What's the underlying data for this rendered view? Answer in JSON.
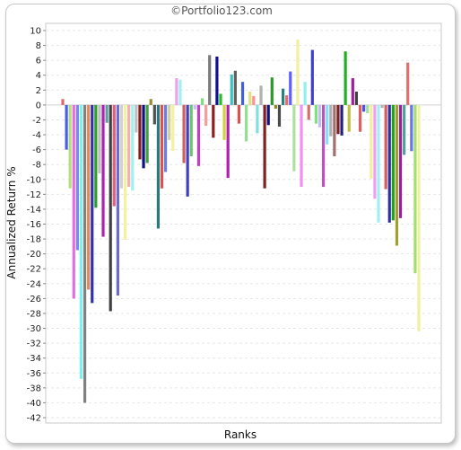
{
  "chart_data": {
    "type": "bar",
    "title": "©Portfolio123.com",
    "xlabel": "Ranks",
    "ylabel": "Annualized Return %",
    "ylim": [
      -42,
      10
    ],
    "ytick_step": 2,
    "grid": true,
    "legend": "none",
    "series": [
      {
        "values": [
          0.8,
          -6,
          -11.2,
          -26,
          -19.5,
          -36.8,
          -40,
          -24.8,
          -26.6,
          -13.8,
          -9.2,
          -17.7,
          -2.4,
          -27.7,
          -13.6,
          -25.6,
          -11.2,
          -18.1,
          -11,
          -11.5,
          -3.7,
          -7.3,
          -8.5,
          -7.8,
          0.8,
          -2.6,
          -16.6,
          -11.2,
          -9,
          -4.7,
          -6.2,
          3.6,
          3.4,
          -7.8,
          -12.3,
          -6.9,
          -0.6,
          -8.2,
          0.9,
          -2.8,
          6.7,
          -4.4,
          6.5,
          1.5,
          -4.7,
          -9.8,
          4.1,
          4.6,
          -2.5,
          3.1,
          -4.9,
          1.8,
          1.2,
          -3.8,
          2.6,
          -11.2,
          -2.7,
          3.7,
          -0.5,
          -2.9,
          2.2,
          1.3,
          4.5,
          -8.9,
          8.8,
          -11,
          3.1,
          -2,
          7.4,
          -2.5,
          -3,
          -11,
          -5.3,
          -4.2,
          -6.9,
          -3.9,
          -4.1,
          7.2,
          -3.6,
          3.6,
          1.8,
          -3.6,
          -0.9,
          -1.1,
          -9.9,
          -12.6,
          -15.8,
          -0.4,
          -11.3,
          -15.8,
          -15.5,
          -18.9,
          -15.2,
          -6.7,
          5.7,
          -6.2,
          -22.6,
          -30.4
        ]
      }
    ]
  },
  "colors": [
    "#e06a6a",
    "#4c5ee0",
    "#b4e07a",
    "#e070e0",
    "#8080ff",
    "#7af2f2",
    "#808080",
    "#e08a5a",
    "#3030b0",
    "#2aa02a",
    "#bfbfbf",
    "#b020b0",
    "#5ea0a0",
    "#404040",
    "#e06080",
    "#6a6ad0",
    "#d0d0d0",
    "#f2f2a0",
    "#f0b0b0",
    "#a0f2f2",
    "#c0c0c0",
    "#802020",
    "#101080",
    "#40a040",
    "#909030",
    "#505050",
    "#2a7a7a",
    "#e05050",
    "#6a80e0",
    "#d0d0a0",
    "#f2f2a0",
    "#f0a0f0",
    "#a0f0f0",
    "#d06060",
    "#4040c0",
    "#70c070",
    "#c0c0ff",
    "#c040c0",
    "#7fe07f",
    "#f0a0a0",
    "#7a7a7a",
    "#902020",
    "#101090",
    "#20c020",
    "#d0d040",
    "#b020b0",
    "#40c0c0",
    "#606060",
    "#e05050",
    "#4060e0",
    "#90e090",
    "#e0e080",
    "#ff9090",
    "#80e0e0",
    "#b0b0b0",
    "#802020",
    "#101080",
    "#2a9a2a",
    "#8a8a20",
    "#4a4a4a",
    "#2a8080",
    "#e07070",
    "#6060ff",
    "#b0e0a0",
    "#f0f0a0",
    "#f090f0",
    "#90f0f0",
    "#d07070",
    "#4040d0",
    "#80e080",
    "#c0c0f0",
    "#c050c0",
    "#80e0ff",
    "#b0b0b0",
    "#a07070",
    "#7a2020",
    "#202080",
    "#20b020",
    "#c0c040",
    "#a020a0",
    "#404040",
    "#e06060",
    "#5050e0",
    "#a0e0a0",
    "#f0f0a0",
    "#f0a0f0",
    "#a0f0f0",
    "#b0b0b0",
    "#d06060",
    "#3030a0",
    "#20a020",
    "#a0a030",
    "#9a209a",
    "#50a0a0",
    "#e07070",
    "#7070f0",
    "#a0e070",
    "#f0f0a0",
    "#e0a0e0"
  ]
}
